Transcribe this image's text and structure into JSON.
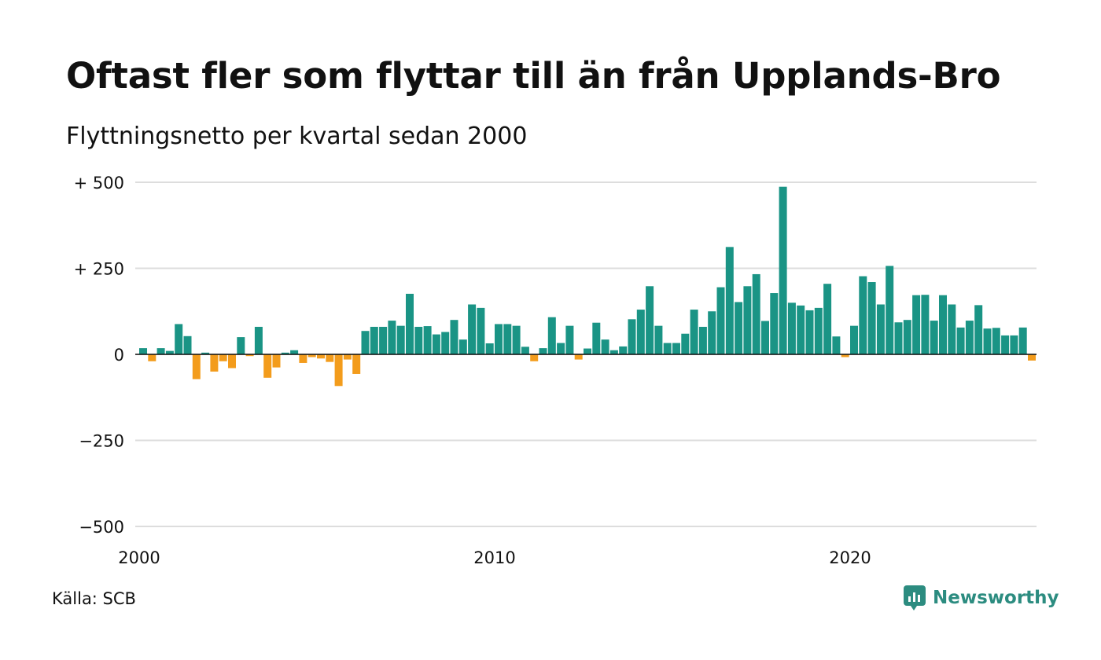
{
  "title": "Oftast fler som flyttar till än från Upplands-Bro",
  "subtitle": "Flyttningsnetto per kvartal sedan 2000",
  "source": "Källa: SCB",
  "brand": {
    "name": "Newsworthy",
    "icon": "newsworthy-logo-icon",
    "color": "#2c8c80"
  },
  "chart_data": {
    "type": "bar",
    "title": "Oftast fler som flyttar till än från Upplands-Bro",
    "subtitle": "Flyttningsnetto per kvartal sedan 2000",
    "xlabel": "",
    "ylabel": "",
    "x_start_year": 2000,
    "ylim": [
      -500,
      500
    ],
    "y_ticks": [
      500,
      250,
      0,
      -250,
      -500
    ],
    "y_tick_labels": [
      "+ 500",
      "+ 250",
      "0",
      "−250",
      "−500"
    ],
    "x_ticks": [
      "2000",
      "2010",
      "2020"
    ],
    "grid": true,
    "legend": "none",
    "colors": {
      "positive": "#1a9485",
      "negative": "#f39c1c",
      "grid": "#dddddd",
      "zero_line": "#111111"
    },
    "values": [
      18,
      -20,
      18,
      10,
      88,
      53,
      -72,
      5,
      -50,
      -20,
      -40,
      50,
      -5,
      80,
      -68,
      -38,
      5,
      12,
      -25,
      -8,
      -12,
      -22,
      -92,
      -15,
      -57,
      68,
      80,
      80,
      98,
      83,
      176,
      80,
      82,
      58,
      65,
      100,
      43,
      145,
      135,
      32,
      88,
      88,
      83,
      22,
      -20,
      18,
      108,
      33,
      83,
      -15,
      17,
      92,
      43,
      12,
      23,
      102,
      130,
      198,
      83,
      33,
      33,
      60,
      130,
      80,
      125,
      195,
      312,
      152,
      198,
      233,
      97,
      178,
      487,
      150,
      142,
      128,
      135,
      205,
      52,
      -8,
      83,
      227,
      210,
      145,
      257,
      93,
      100,
      172,
      173,
      98,
      172,
      145,
      78,
      98,
      143,
      75,
      77,
      55,
      55,
      78,
      -18
    ]
  }
}
